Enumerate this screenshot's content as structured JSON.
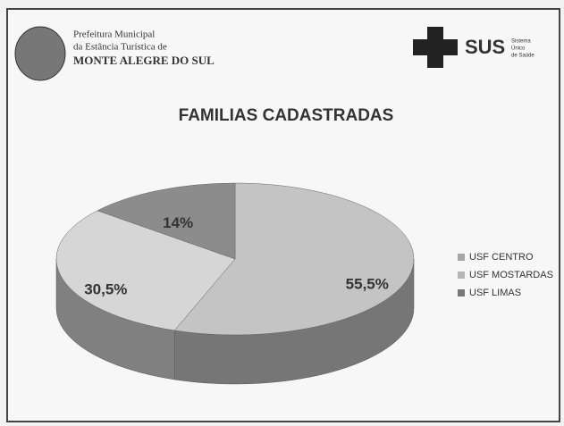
{
  "header": {
    "city_lines": [
      "Prefeitura Municipal",
      "da Estância Turística de",
      "MONTE ALEGRE DO SUL"
    ],
    "sus": "SUS",
    "sus_lines": [
      "Sistema",
      "Único",
      "de Saúde"
    ]
  },
  "chart_data": {
    "type": "pie",
    "title": "FAMILIAS CADASTRADAS",
    "categories": [
      "USF CENTRO",
      "USF MOSTARDAS",
      "USF LIMAS"
    ],
    "values": [
      55.5,
      30.5,
      14
    ],
    "value_labels": [
      "55,5%",
      "30,5%",
      "14%"
    ],
    "colors": [
      "#c4c4c4",
      "#d6d6d6",
      "#8c8c8c"
    ],
    "legend": "right"
  }
}
